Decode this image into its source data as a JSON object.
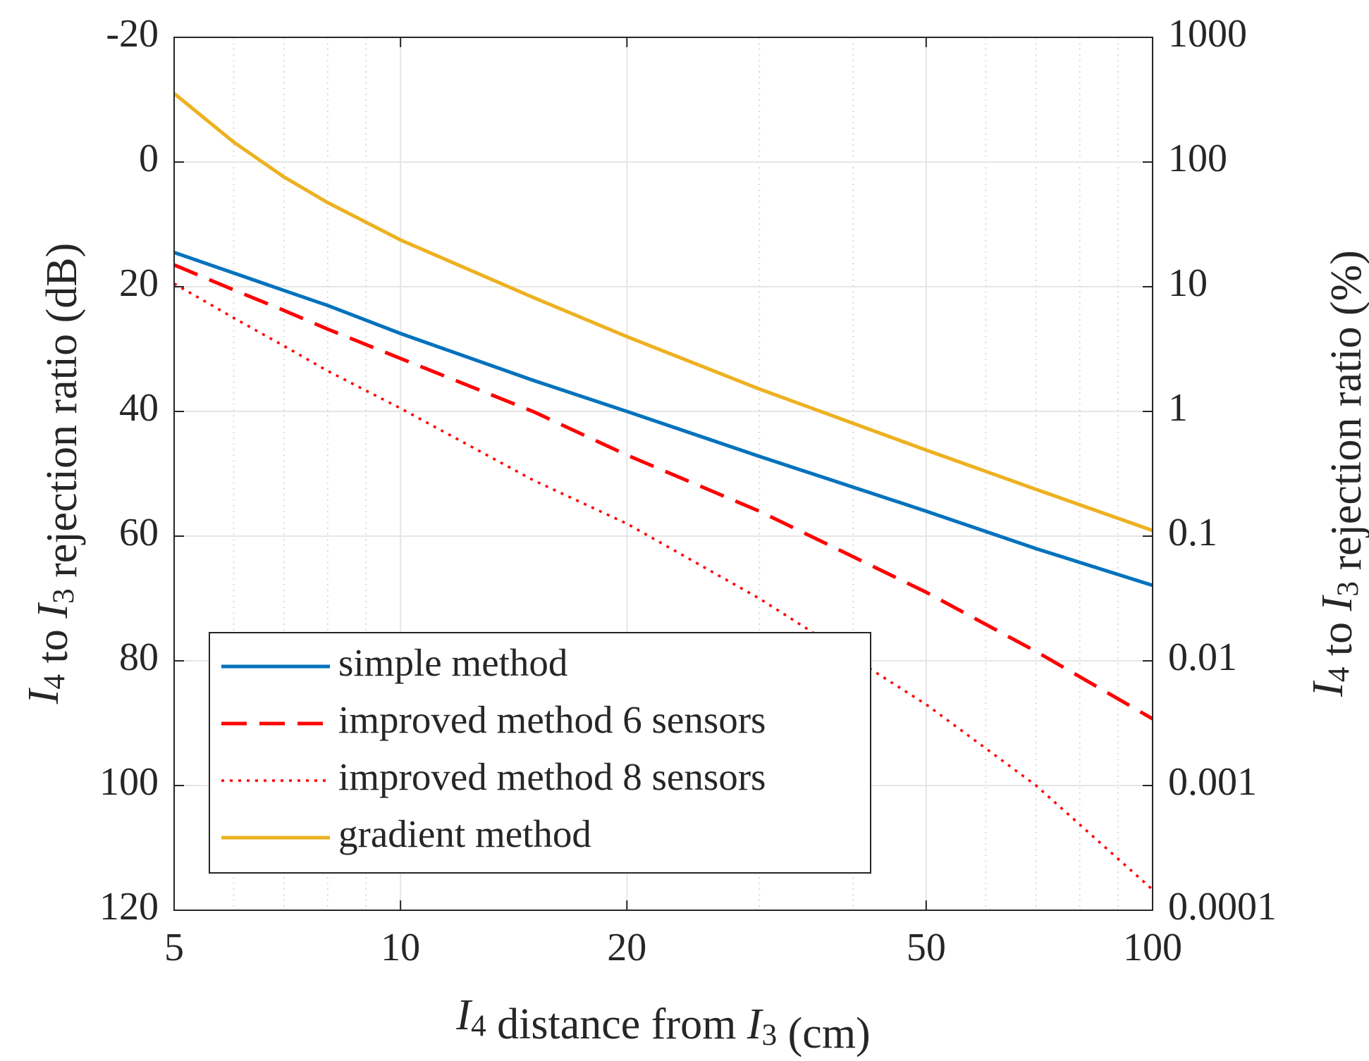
{
  "chart_data": {
    "type": "line",
    "xlabel": "I4 distance from I3 (cm)",
    "ylabel": "I4 to I3 rejection ratio (dB)",
    "y2label": "I4 to I3 rejection ratio (%)",
    "x": [
      5,
      6,
      7,
      8,
      10,
      15,
      20,
      30,
      50,
      70,
      100
    ],
    "xscale": "log",
    "xlim": [
      5,
      100
    ],
    "xticks": [
      5,
      10,
      20,
      50,
      100
    ],
    "ylim": [
      -20,
      120
    ],
    "yticks": [
      -20,
      0,
      20,
      40,
      60,
      80,
      100,
      120
    ],
    "y2scale": "log",
    "y2lim": [
      1000,
      0.0001
    ],
    "y2ticks": [
      1000,
      100,
      10,
      1,
      0.1,
      0.01,
      0.001,
      0.0001
    ],
    "grid": true,
    "legend": "lower left",
    "series": [
      {
        "name": "simple method",
        "color": "#0072bd",
        "dash": "solid",
        "values": [
          14.5,
          17.8,
          20.6,
          23,
          27.5,
          35,
          40,
          47.2,
          56,
          62,
          67.9
        ]
      },
      {
        "name": "improved method 6 sensors",
        "color": "#ff0000",
        "dash": "dashed",
        "values": [
          16.5,
          20.5,
          23.8,
          26.8,
          31.5,
          40,
          47,
          56,
          69,
          78.5,
          89.3
        ]
      },
      {
        "name": "improved method 8 sensors",
        "color": "#ff0000",
        "dash": "dotted",
        "values": [
          19.5,
          25,
          29.5,
          33.5,
          39.5,
          51,
          58,
          70,
          87,
          100,
          116.7
        ]
      },
      {
        "name": "gradient method",
        "color": "#edb120",
        "dash": "solid",
        "values": [
          -11,
          -3.2,
          2.4,
          6.5,
          12.5,
          21.7,
          28,
          36.4,
          46.2,
          52.5,
          59.1
        ]
      }
    ]
  }
}
